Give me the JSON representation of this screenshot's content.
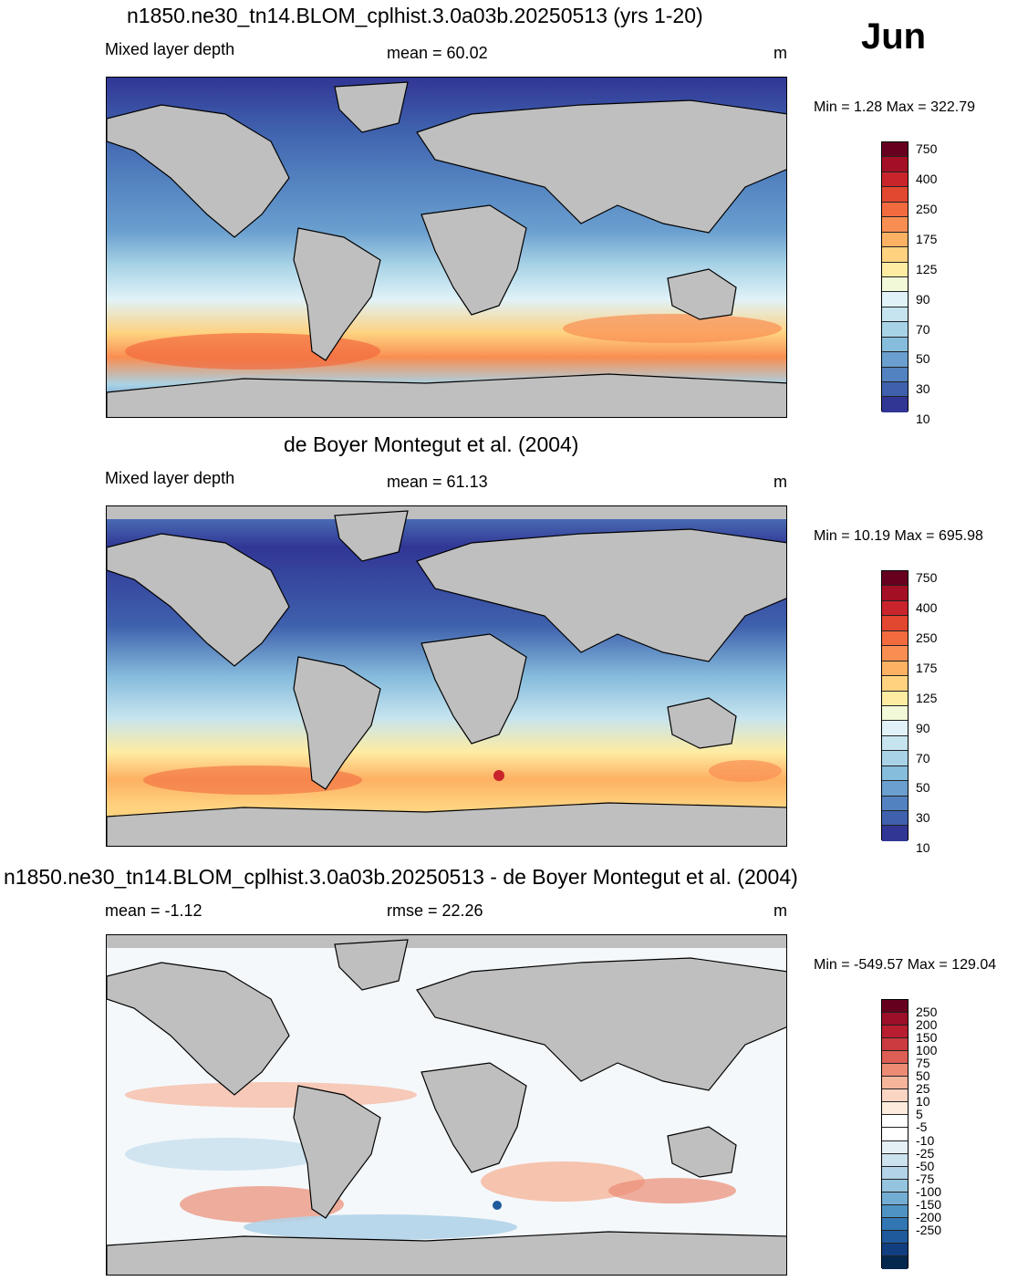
{
  "month": "Jun",
  "panels": [
    {
      "title": "n1850.ne30_tn14.BLOM_cplhist.3.0a03b.20250513 (yrs 1-20)",
      "left_label": "Mixed layer depth",
      "center_label": "mean =  60.02",
      "units": "m",
      "minmax": "Min =   1.28 Max = 322.79"
    },
    {
      "title": "de Boyer Montegut et al. (2004)",
      "left_label": "Mixed layer depth",
      "center_label": "mean =  61.13",
      "units": "m",
      "minmax": "Min =  10.19 Max = 695.98"
    },
    {
      "title": "n1850.ne30_tn14.BLOM_cplhist.3.0a03b.20250513 - de Boyer Montegut et al. (2004)",
      "left_label": "mean =  -1.12",
      "center_label": "rmse =  22.26",
      "units": "m",
      "minmax": "Min = -549.57 Max = 129.04"
    }
  ],
  "colorbars": {
    "mld": {
      "colors": [
        "#67001f",
        "#a50f25",
        "#c9242c",
        "#e2472f",
        "#f26b3f",
        "#f98e52",
        "#fdb163",
        "#fed27f",
        "#feeca2",
        "#f2f9d9",
        "#e0f2f8",
        "#c6e4ef",
        "#a8d3e6",
        "#86bcdc",
        "#6a9fcf",
        "#5382c0",
        "#3f61ad",
        "#313695"
      ],
      "labels": [
        "750",
        "400",
        "250",
        "175",
        "125",
        "90",
        "70",
        "50",
        "30",
        "10"
      ]
    },
    "diff": {
      "colors": [
        "#67001f",
        "#9b0f28",
        "#b81e30",
        "#cb3b40",
        "#dc5e54",
        "#eb8b73",
        "#f6b59b",
        "#fbd5c4",
        "#fdecde",
        "#ffffff",
        "#ffffff",
        "#e5eff6",
        "#cde2ef",
        "#b3d3e8",
        "#94c4df",
        "#74add4",
        "#4f93c4",
        "#3277b3",
        "#1f5a9c",
        "#113e80",
        "#05284f"
      ],
      "labels": [
        "250",
        "200",
        "150",
        "100",
        "75",
        "50",
        "25",
        "10",
        "5",
        "-5",
        "-10",
        "-25",
        "-50",
        "-75",
        "-100",
        "-150",
        "-200",
        "-250"
      ]
    }
  }
}
